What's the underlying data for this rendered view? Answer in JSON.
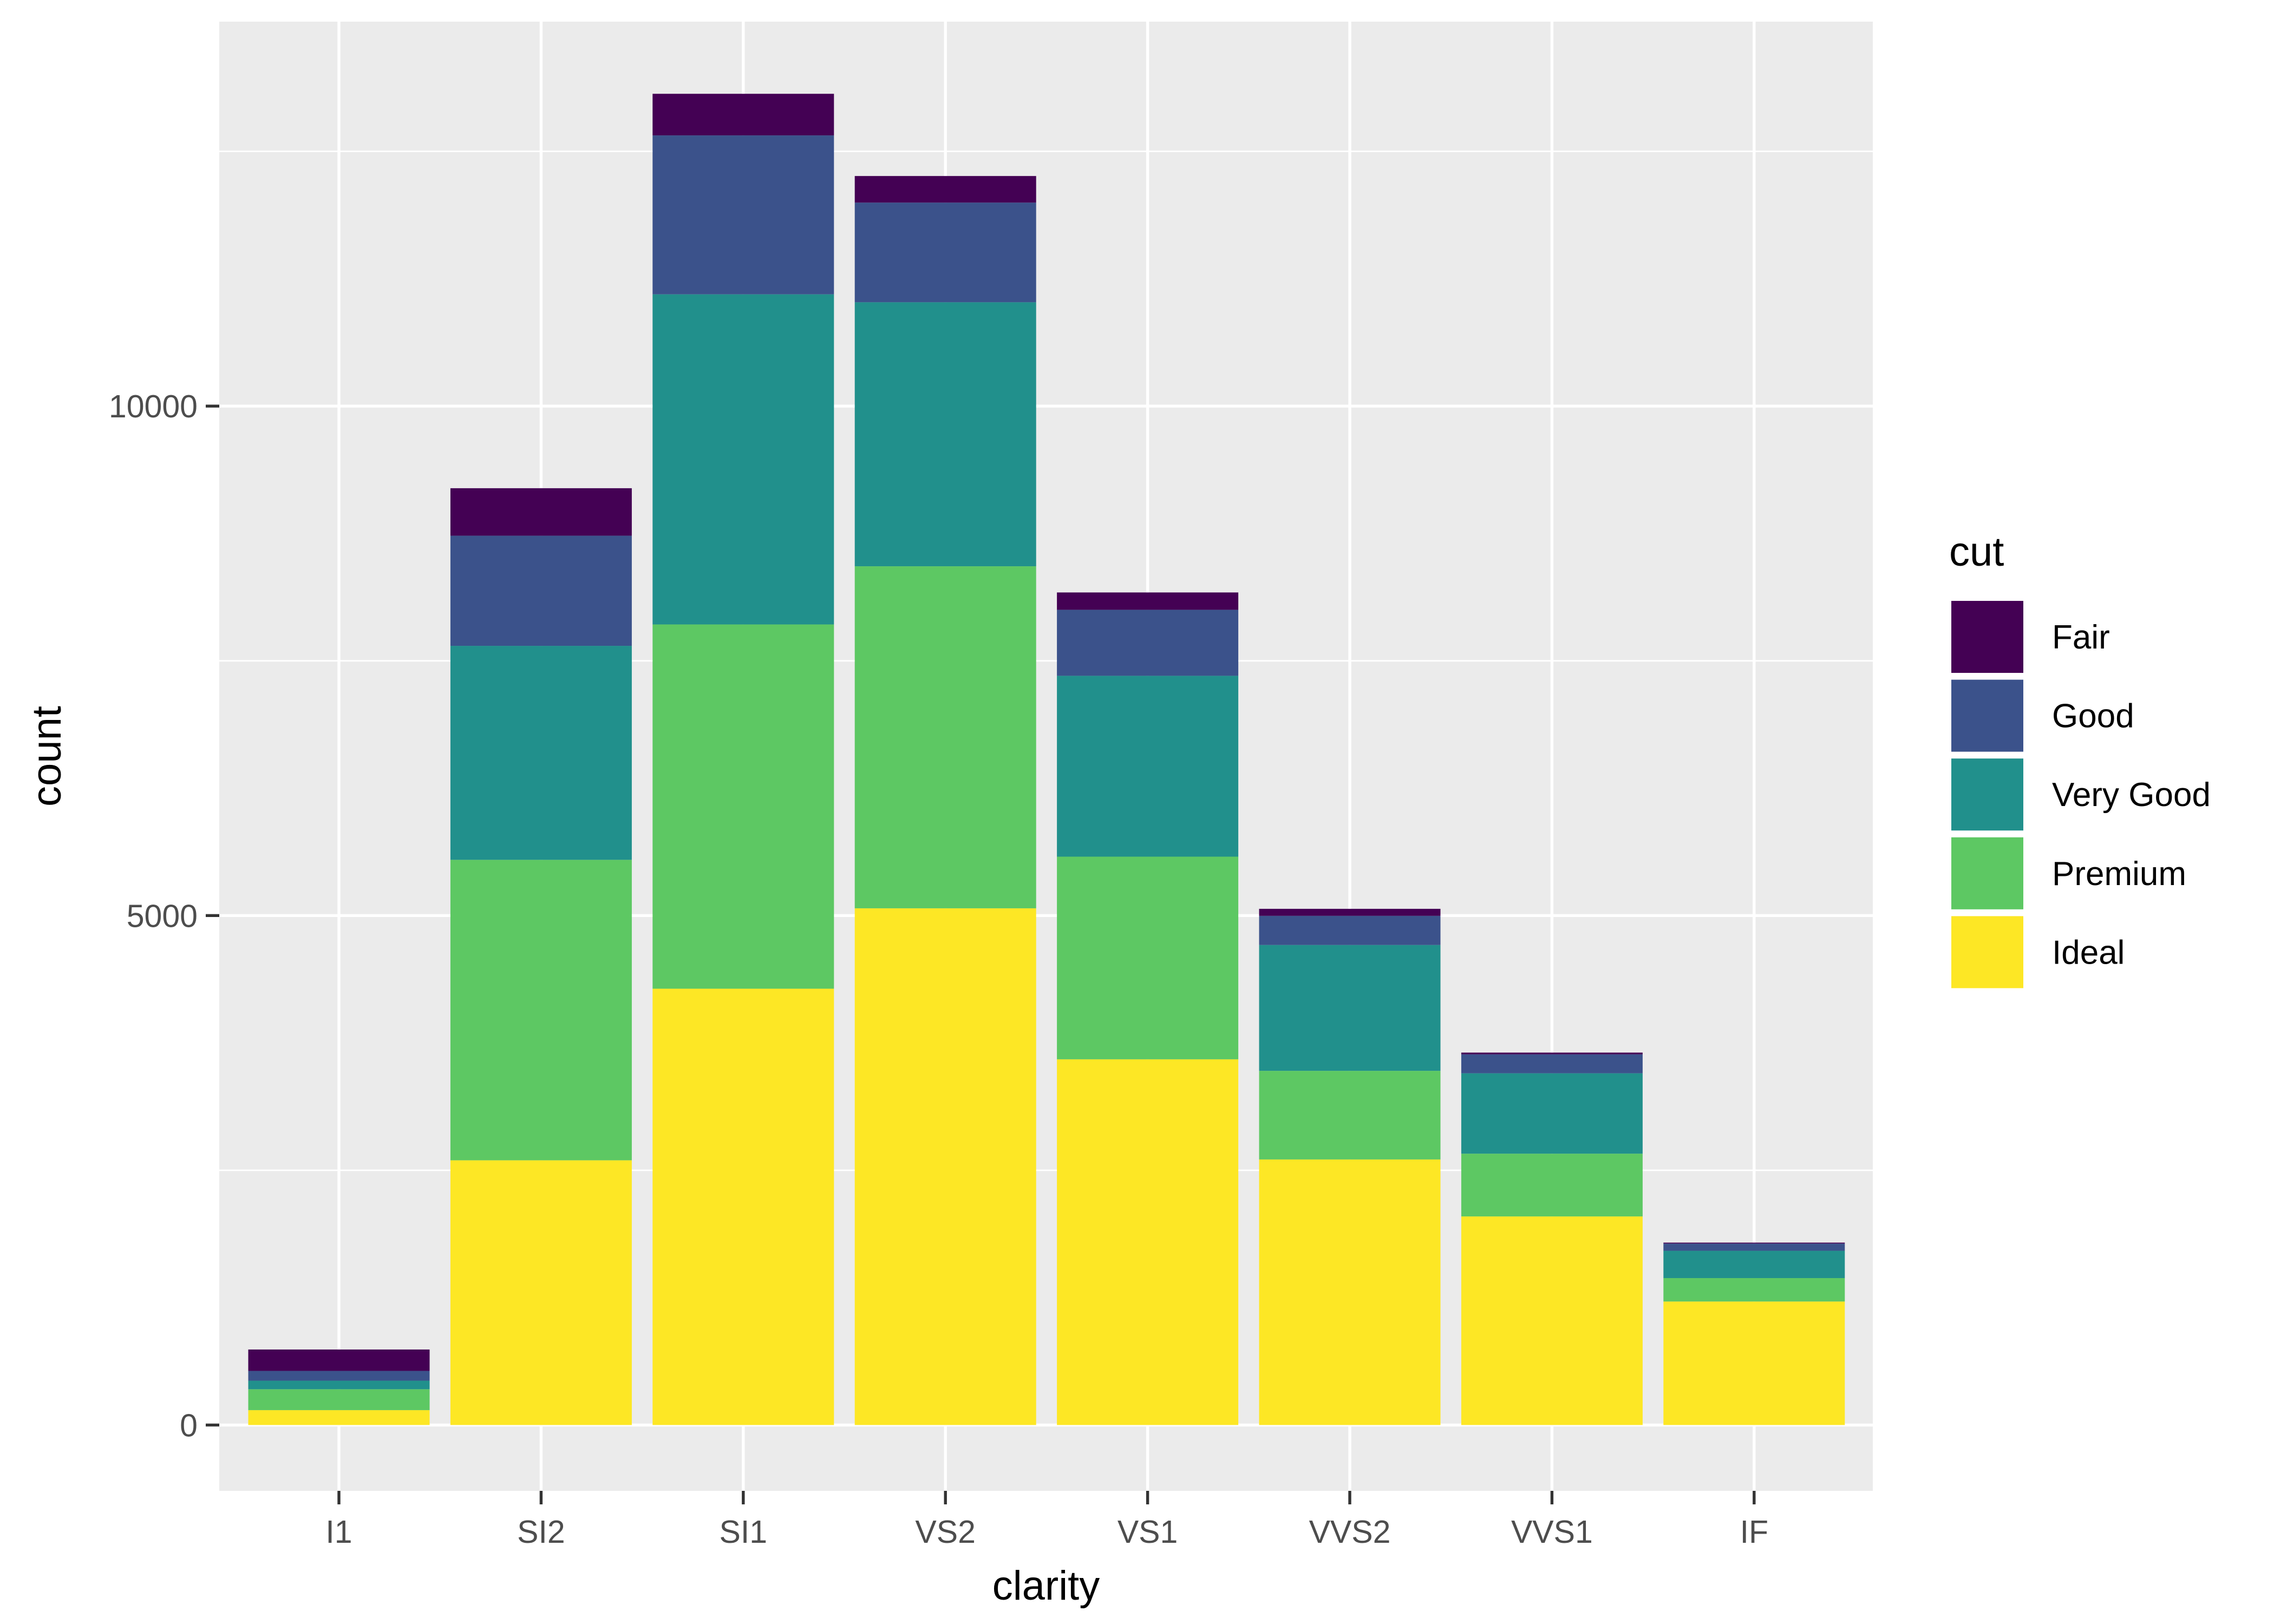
{
  "chart_data": {
    "type": "bar",
    "stacked": true,
    "xlabel": "clarity",
    "ylabel": "count",
    "categories": [
      "I1",
      "SI2",
      "SI1",
      "VS2",
      "VS1",
      "VVS2",
      "VVS1",
      "IF"
    ],
    "ylim": [
      -646,
      13773
    ],
    "yticks": [
      0,
      5000,
      10000
    ],
    "grid": true,
    "legend": {
      "title": "cut",
      "position": "right"
    },
    "series": [
      {
        "name": "Fair",
        "color": "#440154",
        "values": [
          210,
          466,
          408,
          261,
          170,
          69,
          17,
          9
        ]
      },
      {
        "name": "Good",
        "color": "#3B528B",
        "values": [
          96,
          1081,
          1560,
          978,
          648,
          286,
          186,
          71
        ]
      },
      {
        "name": "Very Good",
        "color": "#21908C",
        "values": [
          84,
          2100,
          3240,
          2591,
          1775,
          1235,
          789,
          268
        ]
      },
      {
        "name": "Premium",
        "color": "#5DC863",
        "values": [
          205,
          2949,
          3575,
          3357,
          1989,
          870,
          616,
          230
        ]
      },
      {
        "name": "Ideal",
        "color": "#FDE725",
        "values": [
          146,
          2598,
          4282,
          5071,
          3589,
          2606,
          2047,
          1212
        ]
      }
    ]
  }
}
